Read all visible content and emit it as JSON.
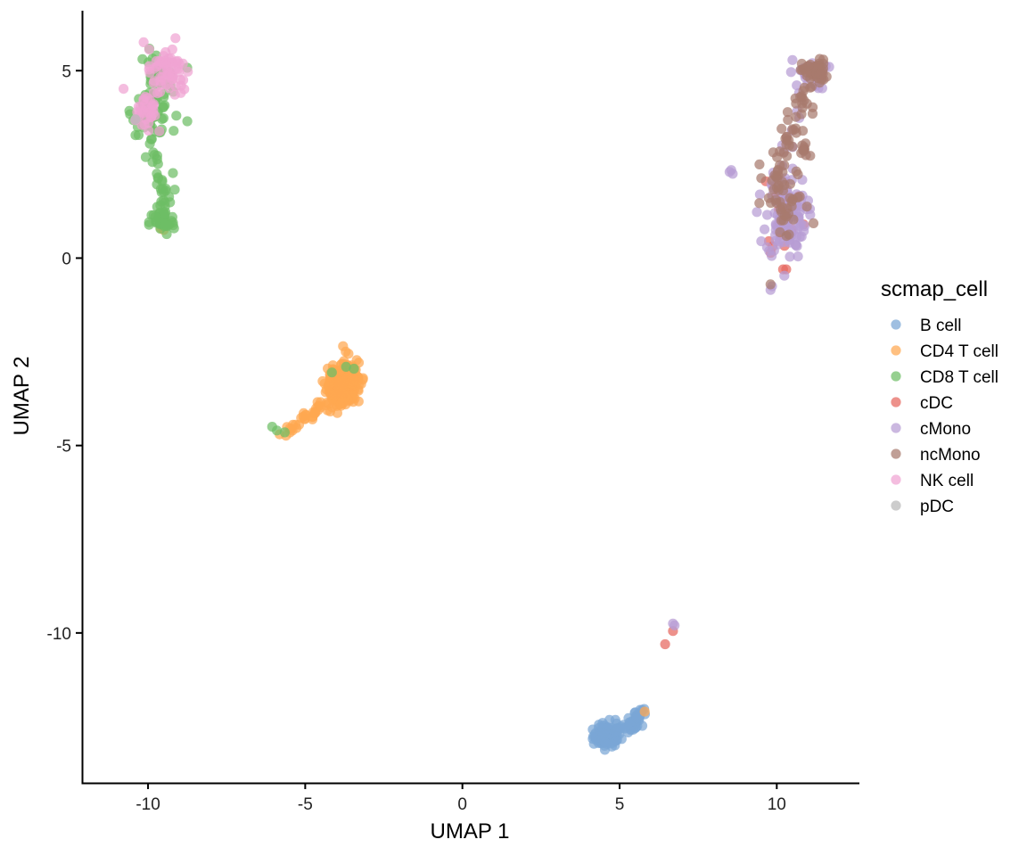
{
  "chart_data": {
    "type": "scatter",
    "title": "",
    "xlabel": "UMAP 1",
    "ylabel": "UMAP 2",
    "xlim": [
      -12.1,
      12.6
    ],
    "ylim": [
      -14.0,
      6.6
    ],
    "xticks": [
      -10,
      -5,
      0,
      5,
      10
    ],
    "yticks": [
      5,
      0,
      -5,
      -10
    ],
    "grid": false,
    "legend": {
      "title": "scmap_cell",
      "placement": "right"
    },
    "series": [
      {
        "name": "B cell",
        "color": "#7AA6D6",
        "clusters": [
          {
            "cx": 4.6,
            "cy": -12.75,
            "sx": 0.22,
            "sy": 0.14,
            "n": 110
          },
          {
            "cx": 5.25,
            "cy": -12.45,
            "sx": 0.25,
            "sy": 0.12,
            "n": 25
          }
        ],
        "trails": [
          {
            "from": [
              4.9,
              -12.6
            ],
            "to": [
              5.8,
              -12.1
            ],
            "n": 25,
            "jitter": 0.07
          }
        ]
      },
      {
        "name": "CD4 T cell",
        "color": "#FFA851",
        "clusters": [
          {
            "cx": -3.75,
            "cy": -3.3,
            "sx": 0.22,
            "sy": 0.25,
            "n": 210
          },
          {
            "cx": -4.1,
            "cy": -3.55,
            "sx": 0.18,
            "sy": 0.18,
            "n": 60
          }
        ],
        "trails": [
          {
            "from": [
              -5.8,
              -4.75
            ],
            "to": [
              -4.2,
              -3.8
            ],
            "n": 35,
            "jitter": 0.07
          }
        ],
        "points": [
          [
            5.8,
            -12.1
          ],
          [
            -9.6,
            0.8
          ],
          [
            -9.5,
            0.75
          ]
        ]
      },
      {
        "name": "CD8 T cell",
        "color": "#6DBE65",
        "clusters": [
          {
            "cx": -9.9,
            "cy": 3.9,
            "sx": 0.3,
            "sy": 0.3,
            "n": 55
          },
          {
            "cx": -9.7,
            "cy": 4.8,
            "sx": 0.3,
            "sy": 0.35,
            "n": 30
          },
          {
            "cx": -9.55,
            "cy": 1.7,
            "sx": 0.17,
            "sy": 0.28,
            "n": 18
          },
          {
            "cx": -9.55,
            "cy": 0.95,
            "sx": 0.2,
            "sy": 0.17,
            "n": 45
          }
        ],
        "trails": [
          {
            "from": [
              -9.9,
              3.2
            ],
            "to": [
              -9.6,
              2.0
            ],
            "n": 12,
            "jitter": 0.08
          }
        ],
        "points": [
          [
            -8.75,
            3.65
          ],
          [
            -9.1,
            3.8
          ],
          [
            -6.05,
            -4.5
          ],
          [
            -5.9,
            -4.6
          ],
          [
            -5.65,
            -4.65
          ],
          [
            -4.15,
            -3.05
          ],
          [
            -3.7,
            -2.9
          ],
          [
            -3.45,
            -2.95
          ]
        ]
      },
      {
        "name": "cDC",
        "color": "#E6675E",
        "clusters": [
          {
            "cx": 10.3,
            "cy": 1.1,
            "sx": 0.35,
            "sy": 0.6,
            "n": 16
          }
        ],
        "points": [
          [
            6.45,
            -10.3
          ],
          [
            6.7,
            -9.95
          ],
          [
            10.3,
            -0.3
          ],
          [
            10.2,
            -0.3
          ],
          [
            9.75,
            0.45
          ],
          [
            9.65,
            2.05
          ]
        ]
      },
      {
        "name": "cMono",
        "color": "#B79CD4",
        "clusters": [
          {
            "cx": 10.3,
            "cy": 1.1,
            "sx": 0.32,
            "sy": 0.55,
            "n": 120
          },
          {
            "cx": 11.0,
            "cy": 4.9,
            "sx": 0.3,
            "sy": 0.2,
            "n": 20
          }
        ],
        "trails": [
          {
            "from": [
              9.9,
              1.8
            ],
            "to": [
              10.8,
              4.5
            ],
            "n": 12,
            "jitter": 0.12
          }
        ],
        "points": [
          [
            8.5,
            2.3
          ],
          [
            8.55,
            2.35
          ],
          [
            8.6,
            2.25
          ],
          [
            9.8,
            -0.85
          ],
          [
            9.85,
            -0.75
          ],
          [
            6.75,
            -9.8
          ],
          [
            6.7,
            -9.75
          ]
        ]
      },
      {
        "name": "ncMono",
        "color": "#A77A6D",
        "clusters": [
          {
            "cx": 11.2,
            "cy": 4.95,
            "sx": 0.2,
            "sy": 0.17,
            "n": 45
          },
          {
            "cx": 10.3,
            "cy": 1.4,
            "sx": 0.38,
            "sy": 0.5,
            "n": 40
          },
          {
            "cx": 10.9,
            "cy": 2.9,
            "sx": 0.15,
            "sy": 0.15,
            "n": 10
          }
        ],
        "trails": [
          {
            "from": [
              10.0,
              2.2
            ],
            "to": [
              11.0,
              4.6
            ],
            "n": 45,
            "jitter": 0.15
          }
        ],
        "points": [
          [
            9.8,
            -0.7
          ],
          [
            9.45,
            2.5
          ]
        ]
      },
      {
        "name": "NK cell",
        "color": "#F0A3D3",
        "clusters": [
          {
            "cx": -9.45,
            "cy": 5.0,
            "sx": 0.3,
            "sy": 0.35,
            "n": 60
          },
          {
            "cx": -10.15,
            "cy": 3.9,
            "sx": 0.3,
            "sy": 0.25,
            "n": 35
          }
        ]
      },
      {
        "name": "pDC",
        "color": "#B9B9B9",
        "points": [
          [
            -10.4,
            3.7
          ]
        ]
      }
    ]
  }
}
